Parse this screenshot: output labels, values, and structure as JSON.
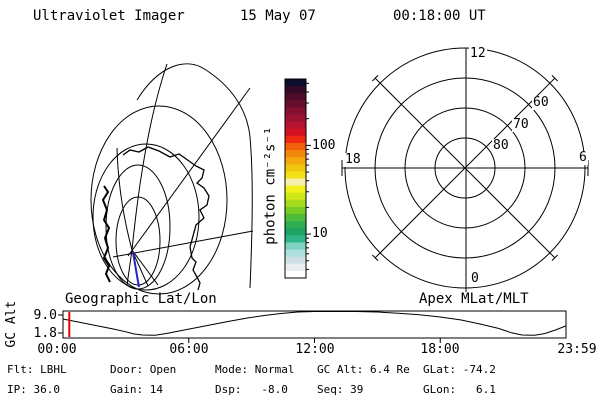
{
  "header": {
    "title": "Ultraviolet Imager",
    "date": "15 May 07",
    "time": "00:18:00 UT"
  },
  "geo_map": {
    "title": "Geographic Lat/Lon",
    "track_color": "#2222cc"
  },
  "colorbar": {
    "unit_label": "photon cm⁻²s⁻¹",
    "tick_labels": [
      "100",
      "10"
    ],
    "colors": [
      "#0d0d2e",
      "#330a28",
      "#4d0c2a",
      "#670e2c",
      "#82102e",
      "#9c1232",
      "#b61232",
      "#d51222",
      "#ee2a10",
      "#f2600a",
      "#f2880c",
      "#f2a80e",
      "#f2c610",
      "#f2e018",
      "#f5efad",
      "#f2ef1c",
      "#cfe81a",
      "#a6dc1c",
      "#78cc26",
      "#4cbc3a",
      "#2eae4e",
      "#1ea462",
      "#31b388",
      "#7fd3c3",
      "#abe0de",
      "#cfdfe3",
      "#e9eef0",
      "#ffffff"
    ]
  },
  "polar": {
    "title": "Apex MLat/MLT",
    "mlt_top": "12",
    "mlt_left": "18",
    "mlt_right": "6",
    "mlt_bottom": "0",
    "mlat_60": "60",
    "mlat_70": "70",
    "mlat_80": "80"
  },
  "strip": {
    "ylabel": "GC Alt",
    "ymax_label": "9.0",
    "ymin_label": "1.8",
    "xtick_labels": [
      "00:00",
      "06:00",
      "12:00",
      "18:00",
      "23:59"
    ]
  },
  "status": {
    "row1": [
      "Flt: LBHL",
      "Door: Open",
      "Mode: Normal",
      "GC Alt: 6.4 Re",
      "GLat: -74.2"
    ],
    "row2": [
      "IP: 36.0",
      "Gain: 14",
      "Dsp:   -8.0",
      "Seq: 39",
      "GLon:   6.1"
    ]
  },
  "chart_data": [
    {
      "type": "line",
      "title": "GC Alt (Re) vs UT",
      "ylabel": "GC Alt",
      "x": [
        0,
        0.6,
        1.2,
        1.8,
        2.4,
        3.0,
        3.4,
        3.8,
        4.4,
        5.0,
        5.6,
        6.4,
        7.2,
        8.0,
        8.8,
        9.6,
        10.4,
        11.2,
        12.0,
        13.0,
        14.0,
        15.0,
        16.0,
        17.0,
        18.0,
        19.0,
        20.0,
        20.8,
        21.4,
        21.9,
        22.5,
        23.0,
        23.5,
        23.98
      ],
      "values": [
        7.4,
        6.4,
        5.4,
        4.4,
        3.4,
        2.3,
        1.4,
        1.0,
        0.9,
        1.7,
        2.7,
        4.0,
        5.3,
        6.6,
        7.8,
        8.8,
        9.6,
        10.2,
        10.5,
        10.6,
        10.5,
        10.2,
        9.7,
        9.1,
        8.2,
        7.0,
        5.2,
        3.6,
        1.9,
        1.0,
        0.9,
        1.6,
        3.0,
        4.6
      ],
      "yticks": [
        9.0,
        1.8
      ],
      "xtick_hours": [
        0,
        6,
        12,
        18,
        23.983
      ],
      "xtick_labels": [
        "00:00",
        "06:00",
        "12:00",
        "18:00",
        "23:59"
      ],
      "marker_time_hours": 0.3,
      "marker_color": "#ee0000",
      "ylim": [
        0,
        10.8
      ]
    },
    {
      "type": "polar-grid",
      "title": "Apex MLat/MLT",
      "rings_mlat": [
        80,
        70,
        60,
        50
      ],
      "ring_labels": [
        "80",
        "70",
        "60"
      ],
      "spoke_mlt": [
        0,
        3,
        6,
        9,
        12,
        15,
        18,
        21
      ],
      "mlt_axis_labels": {
        "top": "12",
        "right": "6",
        "bottom": "0",
        "left": "18"
      }
    },
    {
      "type": "colorbar",
      "scale": "log",
      "unit": "photon cm⁻²s⁻¹",
      "major_ticks": [
        100,
        10
      ],
      "value_top": 560,
      "value_bottom": 3.2
    }
  ]
}
